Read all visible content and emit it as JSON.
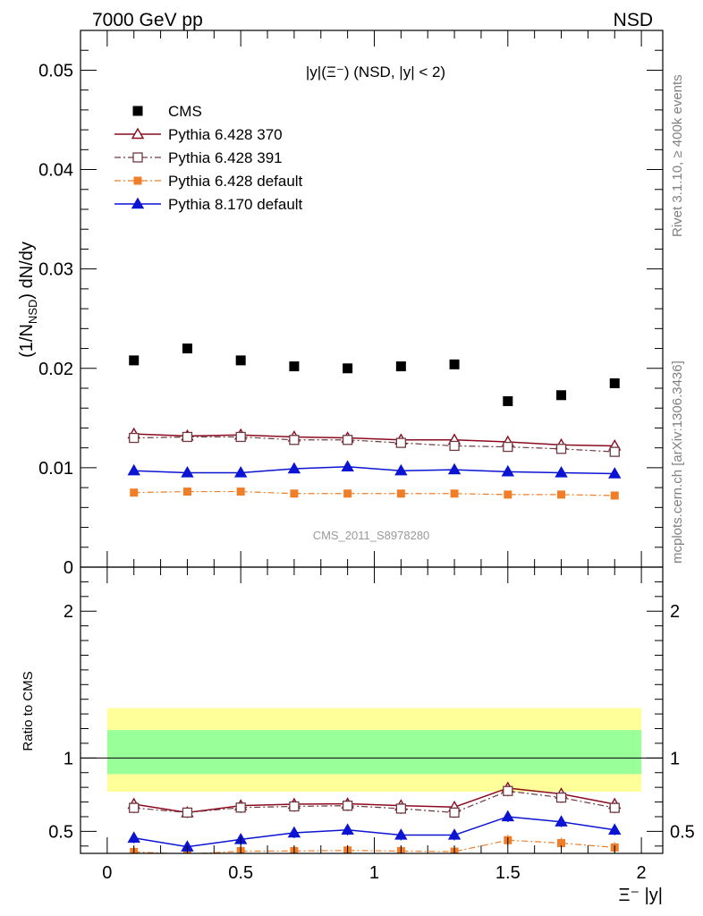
{
  "header": {
    "left": "7000 GeV pp",
    "right": "NSD"
  },
  "side_labels": {
    "rivet": "Rivet 3.1.10, ≥ 400k events",
    "mcplots": "mcplots.cern.ch [arXiv:1306.3436]"
  },
  "chart_data": {
    "type": "scatter",
    "title": "|y|(Ξ⁻) (NSD, |y| < 2)",
    "analysis_label": "CMS_2011_S8978280",
    "ylabel_main": "(1/N_NSD) dN/dy",
    "ylabel_ratio": "Ratio to CMS",
    "xlabel": "Ξ⁻ |y|",
    "xlim": [
      -0.1,
      2.08
    ],
    "ylim_main": [
      0,
      0.054
    ],
    "ylim_ratio": [
      0.35,
      2.3
    ],
    "x_ticks": [
      "0",
      "0.5",
      "1",
      "1.5",
      "2"
    ],
    "y_ticks_main": [
      "0",
      "0.01",
      "0.02",
      "0.03",
      "0.04",
      "0.05"
    ],
    "y_ticks_ratio": [
      "0.5",
      "1",
      "2"
    ],
    "x": [
      0.1,
      0.3,
      0.5,
      0.7,
      0.9,
      1.1,
      1.3,
      1.5,
      1.7,
      1.9
    ],
    "data": {
      "name": "CMS",
      "values": [
        0.0208,
        0.022,
        0.0208,
        0.0202,
        0.02,
        0.0202,
        0.0204,
        0.0167,
        0.0173,
        0.0185
      ]
    },
    "series": [
      {
        "name": "Pythia 6.428 370",
        "color": "#8b0a1e",
        "values": [
          0.0134,
          0.0132,
          0.0133,
          0.0131,
          0.013,
          0.0128,
          0.0128,
          0.0126,
          0.0123,
          0.0122
        ],
        "ratio": [
          0.685,
          0.628,
          0.675,
          0.685,
          0.688,
          0.675,
          0.665,
          0.795,
          0.755,
          0.685
        ]
      },
      {
        "name": "Pythia 6.428 391",
        "color": "#6e3a42",
        "values": [
          0.013,
          0.0131,
          0.0131,
          0.0128,
          0.0128,
          0.0125,
          0.0122,
          0.0121,
          0.0119,
          0.0116
        ],
        "ratio": [
          0.66,
          0.628,
          0.662,
          0.67,
          0.675,
          0.655,
          0.628,
          0.775,
          0.73,
          0.66
        ]
      },
      {
        "name": "Pythia 6.428 default",
        "color": "#f07d28",
        "values": [
          0.0075,
          0.0076,
          0.0076,
          0.0074,
          0.0074,
          0.0074,
          0.0074,
          0.0073,
          0.0073,
          0.0072
        ],
        "ratio": [
          0.36,
          0.345,
          0.365,
          0.366,
          0.37,
          0.366,
          0.362,
          0.44,
          0.42,
          0.39
        ]
      },
      {
        "name": "Pythia 8.170 default",
        "color": "#0a14d2",
        "values": [
          0.0097,
          0.0095,
          0.0095,
          0.0099,
          0.0101,
          0.0097,
          0.0098,
          0.0096,
          0.0095,
          0.0094
        ],
        "ratio": [
          0.455,
          0.395,
          0.445,
          0.49,
          0.51,
          0.475,
          0.475,
          0.6,
          0.565,
          0.51
        ]
      }
    ],
    "bands": {
      "yellow": [
        0.77,
        1.34
      ],
      "green": [
        0.89,
        1.19
      ],
      "x_range": [
        0.0,
        2.0
      ]
    }
  }
}
